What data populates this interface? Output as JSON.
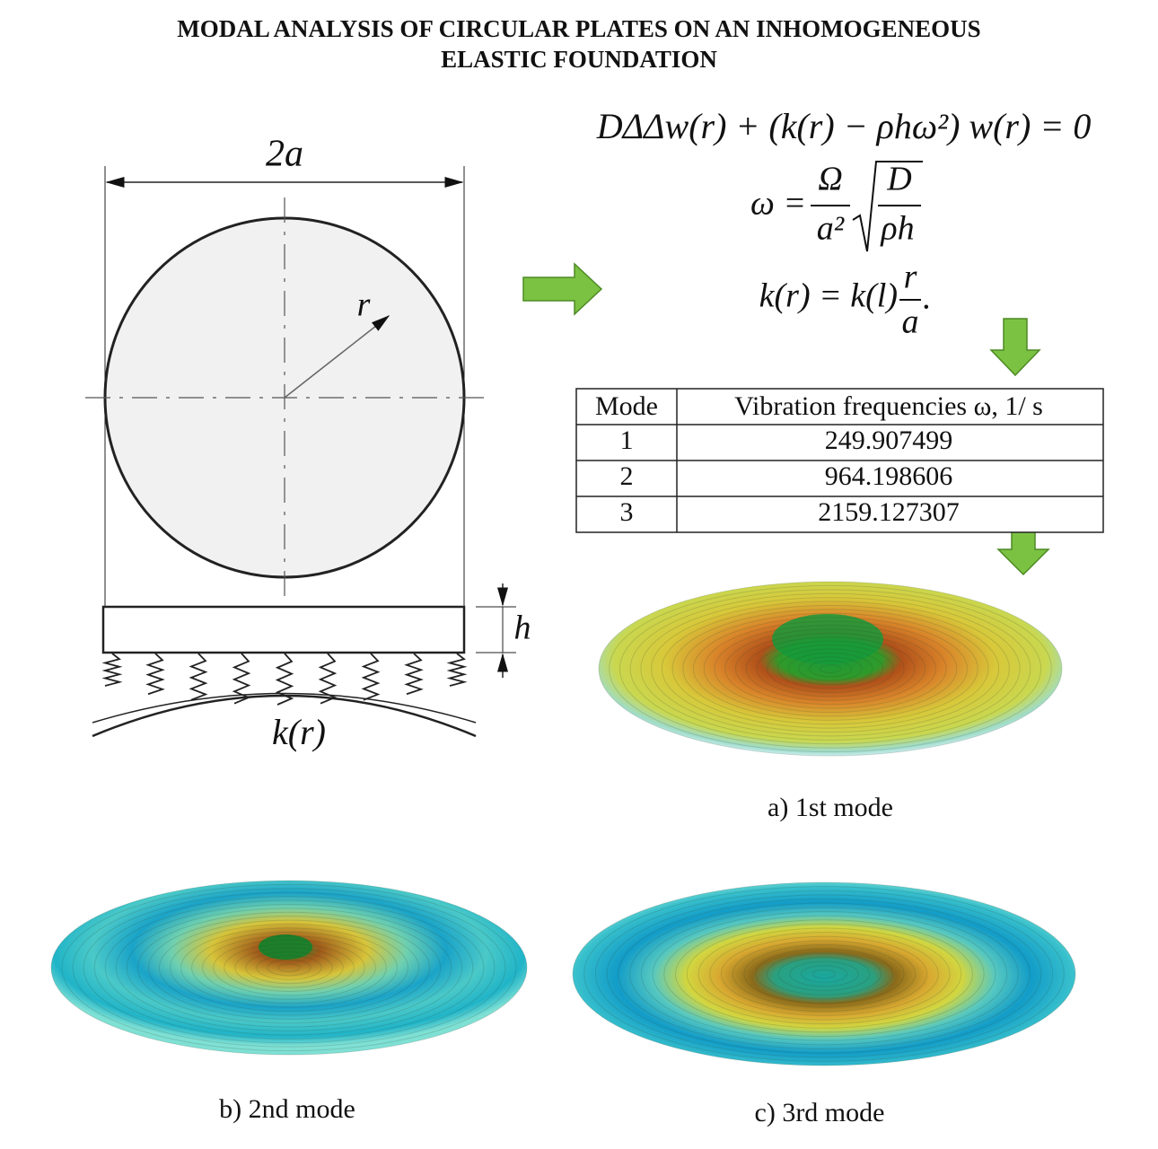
{
  "header": {
    "title_line1": "MODAL ANALYSIS OF CIRCULAR PLATES ON AN INHOMOGENEOUS",
    "title_line2": "ELASTIC FOUNDATION"
  },
  "drawing": {
    "diameter_label": "2a",
    "radius_label": "r",
    "thickness_label": "h",
    "foundation_label": "k(r)"
  },
  "equations": {
    "governing": "DΔΔw(r) + (k(r) − ρhω²) w(r) = 0",
    "frequency": {
      "lhs": "ω =",
      "num": "Ω",
      "den": "a²",
      "sqrt_num": "D",
      "sqrt_den": "ρh"
    },
    "stiffness": {
      "lhs": "k(r) = k(l)",
      "num": "r",
      "den": "a",
      "tail": "."
    }
  },
  "table": {
    "header": [
      "Mode",
      "Vibration frequencies  ω,  1/ s"
    ],
    "rows": [
      [
        "1",
        "249.907499"
      ],
      [
        "2",
        "964.198606"
      ],
      [
        "3",
        "2159.127307"
      ]
    ]
  },
  "captions": {
    "mode1": "a) 1st mode",
    "mode2": "b) 2nd mode",
    "mode3": "c) 3rd mode"
  }
}
